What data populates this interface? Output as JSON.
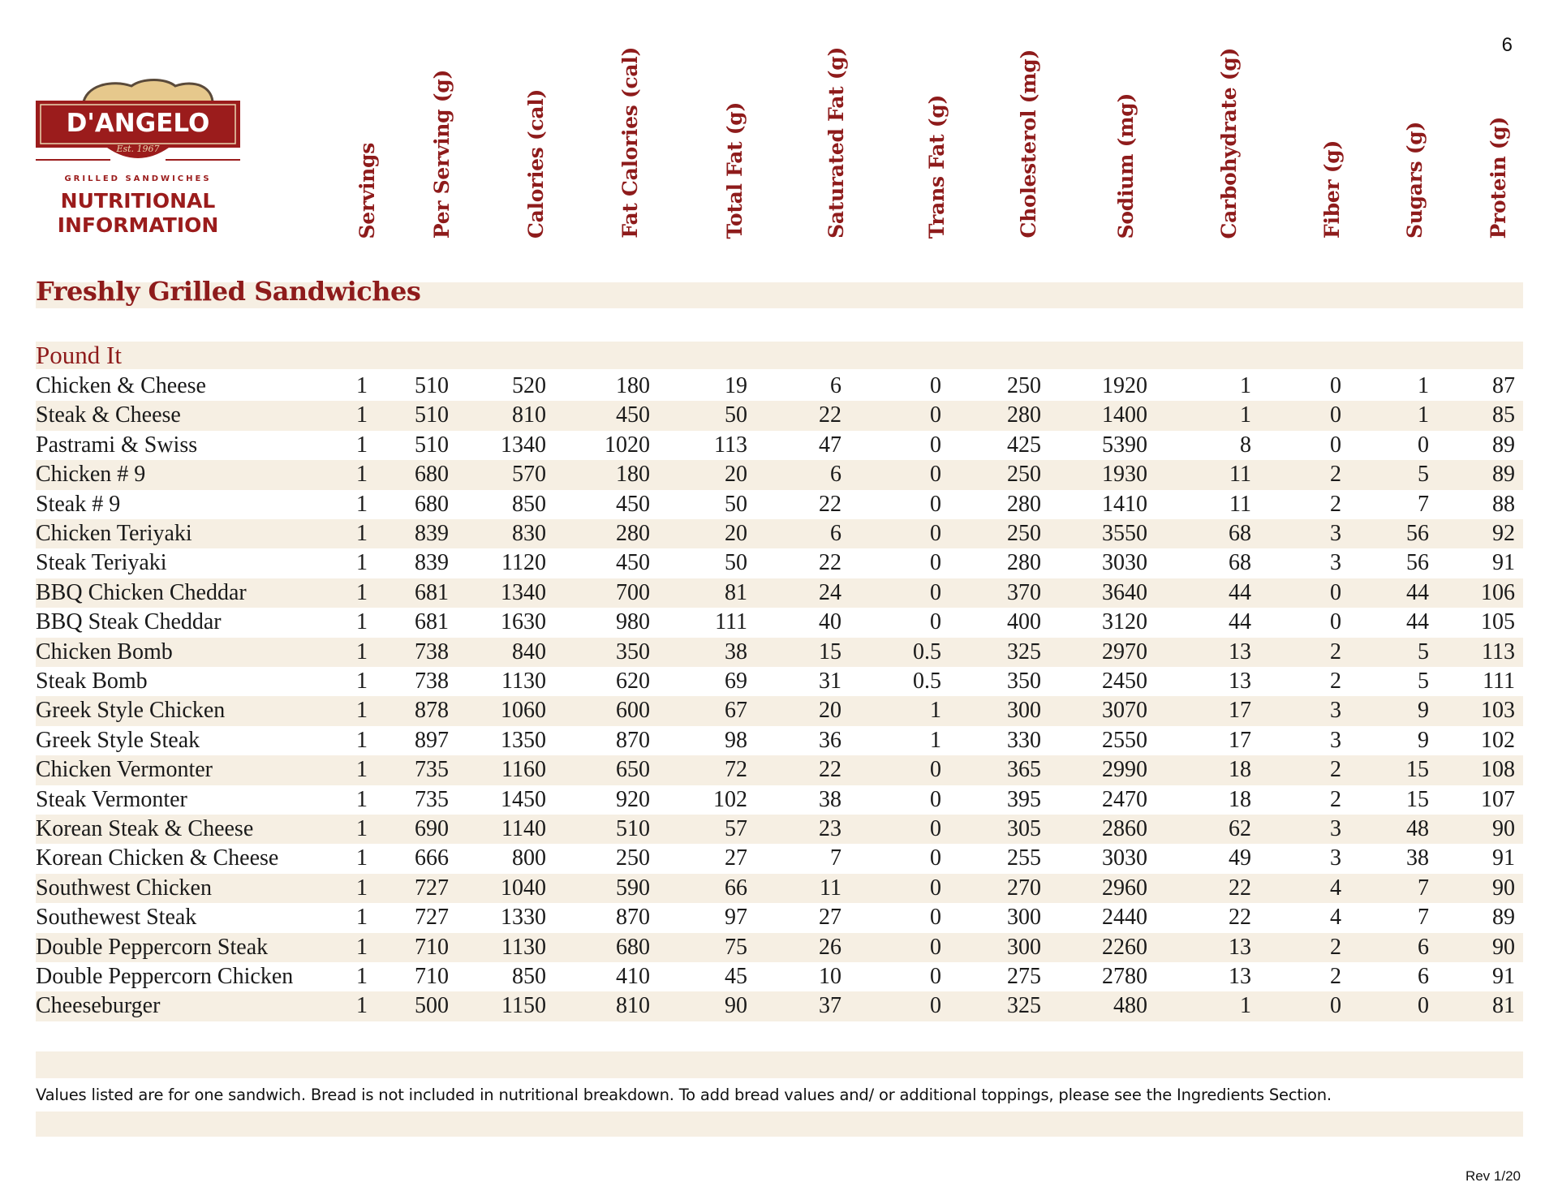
{
  "page_number": "6",
  "logo": {
    "brand": "D'ANGELO",
    "est": "Est. 1967",
    "tagline": "GRILLED SANDWICHES",
    "title_line1": "NUTRITIONAL",
    "title_line2": "INFORMATION"
  },
  "columns": [
    "Servings",
    "Per Serving (g)",
    "Calories (cal)",
    "Fat Calories (cal)",
    "Total Fat (g)",
    "Saturated Fat (g)",
    "Trans Fat  (g)",
    "Cholesterol (mg)",
    "Sodium (mg)",
    "Carbohydrate (g)",
    "Fiber (g)",
    "Sugars (g)",
    "Protein (g)"
  ],
  "section_title": "Freshly Grilled Sandwiches",
  "subsection_title": "Pound It",
  "rows": [
    [
      "Chicken & Cheese",
      "1",
      "510",
      "520",
      "180",
      "19",
      "6",
      "0",
      "250",
      "1920",
      "1",
      "0",
      "1",
      "87"
    ],
    [
      "Steak & Cheese",
      "1",
      "510",
      "810",
      "450",
      "50",
      "22",
      "0",
      "280",
      "1400",
      "1",
      "0",
      "1",
      "85"
    ],
    [
      "Pastrami & Swiss",
      "1",
      "510",
      "1340",
      "1020",
      "113",
      "47",
      "0",
      "425",
      "5390",
      "8",
      "0",
      "0",
      "89"
    ],
    [
      "Chicken # 9",
      "1",
      "680",
      "570",
      "180",
      "20",
      "6",
      "0",
      "250",
      "1930",
      "11",
      "2",
      "5",
      "89"
    ],
    [
      "Steak # 9",
      "1",
      "680",
      "850",
      "450",
      "50",
      "22",
      "0",
      "280",
      "1410",
      "11",
      "2",
      "7",
      "88"
    ],
    [
      "Chicken Teriyaki",
      "1",
      "839",
      "830",
      "280",
      "20",
      "6",
      "0",
      "250",
      "3550",
      "68",
      "3",
      "56",
      "92"
    ],
    [
      "Steak Teriyaki",
      "1",
      "839",
      "1120",
      "450",
      "50",
      "22",
      "0",
      "280",
      "3030",
      "68",
      "3",
      "56",
      "91"
    ],
    [
      "BBQ Chicken Cheddar",
      "1",
      "681",
      "1340",
      "700",
      "81",
      "24",
      "0",
      "370",
      "3640",
      "44",
      "0",
      "44",
      "106"
    ],
    [
      "BBQ Steak Cheddar",
      "1",
      "681",
      "1630",
      "980",
      "111",
      "40",
      "0",
      "400",
      "3120",
      "44",
      "0",
      "44",
      "105"
    ],
    [
      "Chicken Bomb",
      "1",
      "738",
      "840",
      "350",
      "38",
      "15",
      "0.5",
      "325",
      "2970",
      "13",
      "2",
      "5",
      "113"
    ],
    [
      "Steak Bomb",
      "1",
      "738",
      "1130",
      "620",
      "69",
      "31",
      "0.5",
      "350",
      "2450",
      "13",
      "2",
      "5",
      "111"
    ],
    [
      "Greek Style Chicken",
      "1",
      "878",
      "1060",
      "600",
      "67",
      "20",
      "1",
      "300",
      "3070",
      "17",
      "3",
      "9",
      "103"
    ],
    [
      "Greek Style Steak",
      "1",
      "897",
      "1350",
      "870",
      "98",
      "36",
      "1",
      "330",
      "2550",
      "17",
      "3",
      "9",
      "102"
    ],
    [
      "Chicken Vermonter",
      "1",
      "735",
      "1160",
      "650",
      "72",
      "22",
      "0",
      "365",
      "2990",
      "18",
      "2",
      "15",
      "108"
    ],
    [
      "Steak Vermonter",
      "1",
      "735",
      "1450",
      "920",
      "102",
      "38",
      "0",
      "395",
      "2470",
      "18",
      "2",
      "15",
      "107"
    ],
    [
      "Korean Steak & Cheese",
      "1",
      "690",
      "1140",
      "510",
      "57",
      "23",
      "0",
      "305",
      "2860",
      "62",
      "3",
      "48",
      "90"
    ],
    [
      "Korean Chicken & Cheese",
      "1",
      "666",
      "800",
      "250",
      "27",
      "7",
      "0",
      "255",
      "3030",
      "49",
      "3",
      "38",
      "91"
    ],
    [
      "Southwest Chicken",
      "1",
      "727",
      "1040",
      "590",
      "66",
      "11",
      "0",
      "270",
      "2960",
      "22",
      "4",
      "7",
      "90"
    ],
    [
      "Southewest Steak",
      "1",
      "727",
      "1330",
      "870",
      "97",
      "27",
      "0",
      "300",
      "2440",
      "22",
      "4",
      "7",
      "89"
    ],
    [
      "Double Peppercorn Steak",
      "1",
      "710",
      "1130",
      "680",
      "75",
      "26",
      "0",
      "300",
      "2260",
      "13",
      "2",
      "6",
      "90"
    ],
    [
      "Double Peppercorn Chicken",
      "1",
      "710",
      "850",
      "410",
      "45",
      "10",
      "0",
      "275",
      "2780",
      "13",
      "2",
      "6",
      "91"
    ],
    [
      "Cheeseburger",
      "1",
      "500",
      "1150",
      "810",
      "90",
      "37",
      "0",
      "325",
      "480",
      "1",
      "0",
      "0",
      "81"
    ]
  ],
  "footnote": "Values listed are for one sandwich. Bread is not included in nutritional breakdown. To add bread values and/ or additional toppings, please see the Ingredients Section.",
  "revision": "Rev 1/20",
  "colors": {
    "accent": "#8e1b1b",
    "band": "#f6efe3",
    "bread": "#e6c88c"
  }
}
